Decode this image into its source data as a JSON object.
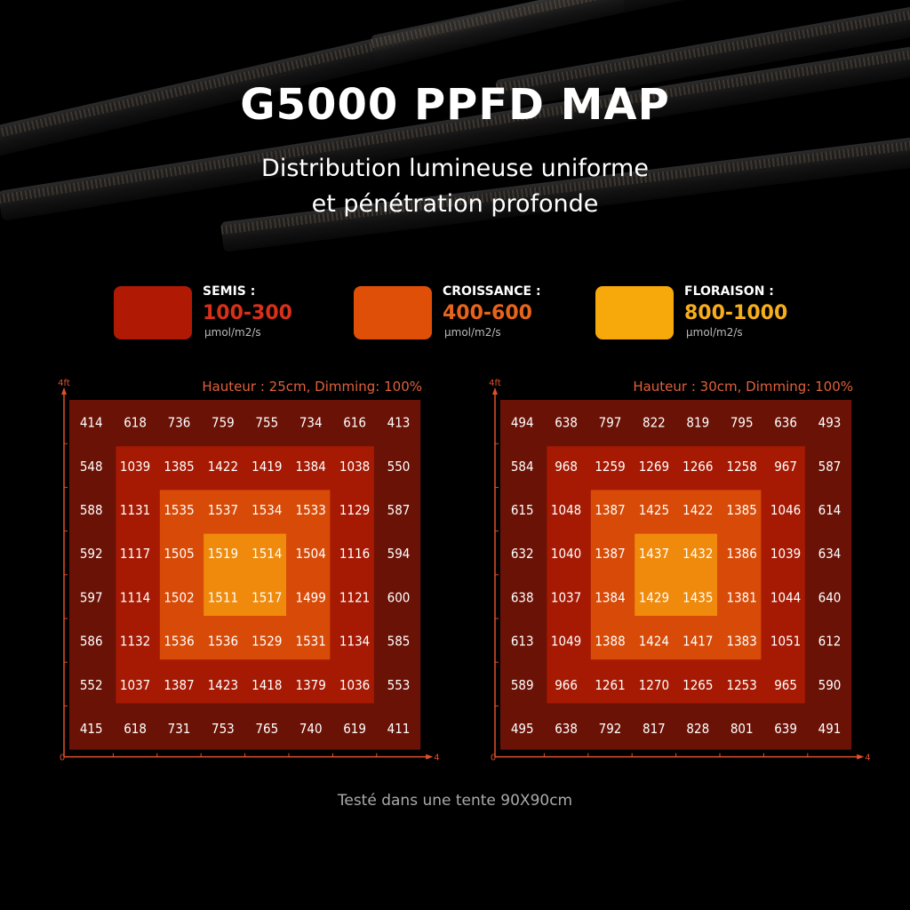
{
  "header": {
    "title": "G5000 PPFD MAP",
    "subtitle_line1": "Distribution lumineuse uniforme",
    "subtitle_line2": "et pénétration profonde"
  },
  "legend": [
    {
      "name": "SEMIS :",
      "range": "100-300",
      "unit": "µmol/m2/s",
      "color": "#b01a05",
      "text_color": "#d8301a"
    },
    {
      "name": "CROISSANCE :",
      "range": "400-600",
      "unit": "µmol/m2/s",
      "color": "#df4f08",
      "text_color": "#e8641a"
    },
    {
      "name": "FLORAISON :",
      "range": "800-1000",
      "unit": "µmol/m2/s",
      "color": "#f7a80a",
      "text_color": "#f6ae1c"
    }
  ],
  "zone_colors": [
    "#6a1206",
    "#a61a04",
    "#d84a07",
    "#ef8a0c"
  ],
  "axis_color": "#e0502a",
  "chart_data": [
    {
      "type": "heatmap",
      "title": "Hauteur : 25cm, Dimming: 100%",
      "x_axis": {
        "start_label": "0",
        "end_label": "4ft",
        "range": [
          0,
          4
        ]
      },
      "y_axis": {
        "end_label": "4ft",
        "range": [
          0,
          4
        ]
      },
      "values": [
        [
          414,
          618,
          736,
          759,
          755,
          734,
          616,
          413
        ],
        [
          548,
          1039,
          1385,
          1422,
          1419,
          1384,
          1038,
          550
        ],
        [
          588,
          1131,
          1535,
          1537,
          1534,
          1533,
          1129,
          587
        ],
        [
          592,
          1117,
          1505,
          1519,
          1514,
          1504,
          1116,
          594
        ],
        [
          597,
          1114,
          1502,
          1511,
          1517,
          1499,
          1121,
          600
        ],
        [
          586,
          1132,
          1536,
          1536,
          1529,
          1531,
          1134,
          585
        ],
        [
          552,
          1037,
          1387,
          1423,
          1418,
          1379,
          1036,
          553
        ],
        [
          415,
          618,
          731,
          753,
          765,
          740,
          619,
          411
        ]
      ]
    },
    {
      "type": "heatmap",
      "title": "Hauteur : 30cm, Dimming: 100%",
      "x_axis": {
        "start_label": "0",
        "end_label": "4ft",
        "range": [
          0,
          4
        ]
      },
      "y_axis": {
        "end_label": "4ft",
        "range": [
          0,
          4
        ]
      },
      "values": [
        [
          494,
          638,
          797,
          822,
          819,
          795,
          636,
          493
        ],
        [
          584,
          968,
          1259,
          1269,
          1266,
          1258,
          967,
          587
        ],
        [
          615,
          1048,
          1387,
          1425,
          1422,
          1385,
          1046,
          614
        ],
        [
          632,
          1040,
          1387,
          1437,
          1432,
          1386,
          1039,
          634
        ],
        [
          638,
          1037,
          1384,
          1429,
          1435,
          1381,
          1044,
          640
        ],
        [
          613,
          1049,
          1388,
          1424,
          1417,
          1383,
          1051,
          612
        ],
        [
          589,
          966,
          1261,
          1270,
          1265,
          1253,
          965,
          590
        ],
        [
          495,
          638,
          792,
          817,
          828,
          801,
          639,
          491
        ]
      ]
    }
  ],
  "footer": "Testé dans une tente 90X90cm"
}
